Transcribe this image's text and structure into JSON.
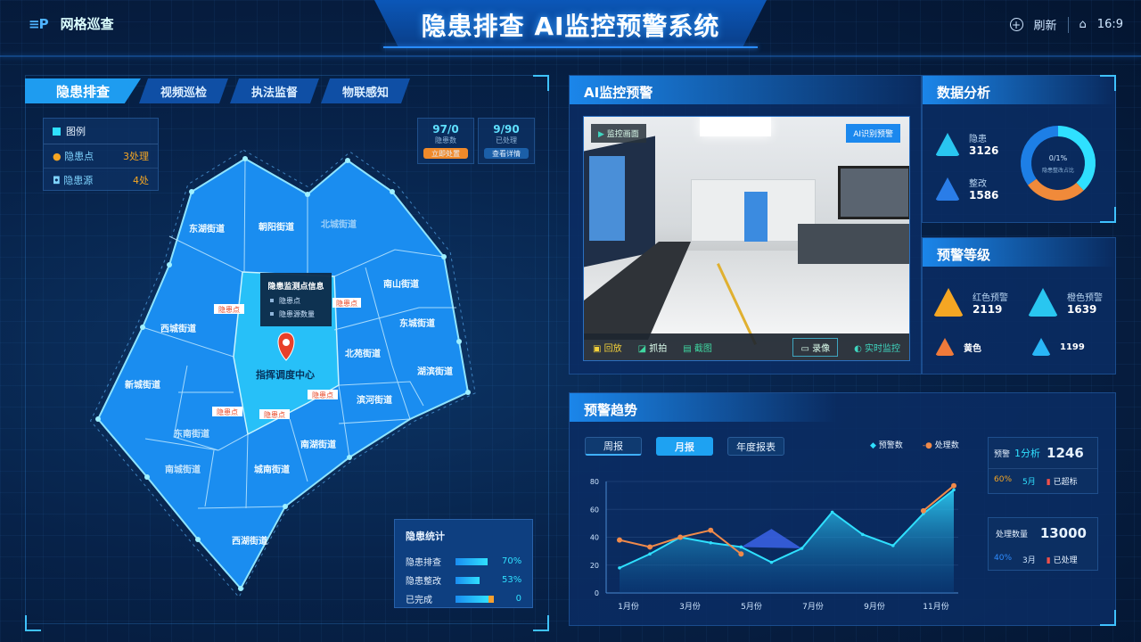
{
  "header": {
    "logo_mark": "≡P",
    "logo_text": "网格巡查",
    "title": "隐患排查 AI监控预警系统",
    "action_label": "刷新",
    "ratio": "16:9"
  },
  "tabs": [
    {
      "label": "隐患排查",
      "active": true
    },
    {
      "label": "视频巡检"
    },
    {
      "label": "执法监督"
    },
    {
      "label": "物联感知"
    }
  ],
  "legend_card": {
    "title": "图例",
    "items": [
      {
        "label": "隐患点",
        "value": "3处理"
      },
      {
        "label": "隐患源",
        "value": "4处"
      }
    ]
  },
  "mini_cards": [
    {
      "value": "97/0",
      "sub": "隐患数",
      "button": "立即处置",
      "color": "#f08a2a"
    },
    {
      "value": "9/90",
      "sub": "已处理",
      "button": "查看详情",
      "color": "#1b5fa8"
    }
  ],
  "map": {
    "regions": [
      "东湖街道",
      "朝阳街道",
      "北城街道",
      "南山街道",
      "西城街道",
      "北苑街道",
      "湖滨街道",
      "新城街道",
      "滨河街道",
      "东南街道",
      "南湖街道",
      "南城街道",
      "城南街道",
      "西湖街道",
      "东城街道"
    ],
    "center_label": "指挥调度中心",
    "badges": [
      "隐患点",
      "隐患点",
      "隐患点",
      "隐患点",
      "隐患点"
    ],
    "popup": {
      "title": "隐患监测点信息",
      "rows": [
        "隐患点",
        "隐患源数量"
      ]
    }
  },
  "map_stats": {
    "title": "隐患统计",
    "rows": [
      {
        "label": "隐患排查",
        "value": "70%",
        "fill": 0.82
      },
      {
        "label": "隐患整改",
        "value": "53%",
        "fill": 0.62
      },
      {
        "label": "已完成",
        "value": "0",
        "fill": 0.84,
        "warn": 0.14
      }
    ]
  },
  "monitor": {
    "title": "AI监控预警",
    "cam_label": "监控画面",
    "cam_badge": "AI识别预警",
    "toolbar": [
      "回放",
      "抓拍",
      "截图"
    ],
    "toolbar_right": [
      "录像",
      "实时监控"
    ]
  },
  "stats_panel": {
    "title": "数据分析",
    "items": [
      {
        "label": "隐患",
        "value": "3126"
      },
      {
        "label": "整改",
        "value": "1586"
      }
    ],
    "donut": {
      "center": "0/1%",
      "sub": "隐患整改占比",
      "segments": [
        {
          "value": 0.38,
          "color": "#2fe0ff"
        },
        {
          "value": 0.27,
          "color": "#f08a3a"
        },
        {
          "value": 0.35,
          "color": "#1d7fe6"
        }
      ]
    }
  },
  "warn_levels": {
    "title": "预警等级",
    "items": [
      {
        "label": "红色预警",
        "value": "2119",
        "color": "#f5a623"
      },
      {
        "label": "橙色预警",
        "value": "1639",
        "color": "#29c6f0"
      },
      {
        "label": "黄色",
        "value": "",
        "color": "#f07a3a"
      },
      {
        "label": "",
        "value": "1199",
        "color": "#29b6f6"
      }
    ]
  },
  "trend": {
    "title": "预警趋势",
    "buttons": [
      {
        "label": "周报"
      },
      {
        "label": "月报",
        "active": true
      },
      {
        "label": "年度报表"
      }
    ],
    "legend": [
      {
        "label": "预警数",
        "color": "#2fe0ff"
      },
      {
        "label": "处理数",
        "color": "#f08a4a"
      }
    ],
    "side": [
      {
        "label": "预警",
        "tag": "1分析",
        "value": "1246",
        "row": [
          "60%",
          "5月",
          "已超标"
        ]
      },
      {
        "label": "处理数量",
        "value": "13000",
        "row": [
          "40%",
          "3月",
          "已处理"
        ]
      }
    ]
  },
  "chart_data": {
    "type": "area",
    "categories": [
      "1月份",
      "3月份",
      "5月份",
      "7月份",
      "9月份",
      "11月份"
    ],
    "y_ticks": [
      "0",
      "20",
      "40",
      "60",
      "80"
    ],
    "ylim": [
      0,
      80
    ],
    "x": [
      0,
      1,
      2,
      3,
      4,
      5,
      6,
      7,
      8,
      9,
      10,
      11
    ],
    "series": [
      {
        "name": "预警数",
        "color": "#2fe0ff",
        "values": [
          18,
          28,
          40,
          36,
          33,
          22,
          32,
          58,
          42,
          34,
          57,
          74
        ]
      },
      {
        "name": "处理数",
        "color": "#f08a4a",
        "values": [
          38,
          33,
          40,
          45,
          28,
          null,
          null,
          null,
          null,
          null,
          59,
          77
        ]
      },
      {
        "color": "#3b63e8",
        "values": [
          null,
          null,
          null,
          null,
          33,
          46,
          32,
          null,
          null,
          null,
          null,
          null
        ]
      }
    ],
    "grid": true
  }
}
